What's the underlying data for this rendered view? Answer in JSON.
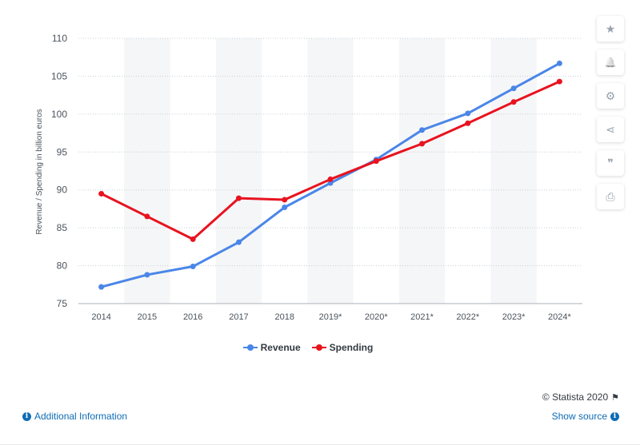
{
  "chart_data": {
    "type": "line",
    "categories": [
      "2014",
      "2015",
      "2016",
      "2017",
      "2018",
      "2019*",
      "2020*",
      "2021*",
      "2022*",
      "2023*",
      "2024*"
    ],
    "series": [
      {
        "name": "Revenue",
        "color": "#4a86e8",
        "values": [
          77.2,
          78.8,
          79.9,
          83.1,
          87.7,
          90.9,
          94.0,
          97.9,
          100.1,
          103.4,
          106.7
        ]
      },
      {
        "name": "Spending",
        "color": "#e8131f",
        "values": [
          89.5,
          86.5,
          83.5,
          88.9,
          88.7,
          91.4,
          93.8,
          96.1,
          98.8,
          101.6,
          104.3
        ]
      }
    ],
    "ylabel": "Revenue / Spending in billion euros",
    "xlabel": "",
    "ylim": [
      75,
      110
    ],
    "yticks": [
      75,
      80,
      85,
      90,
      95,
      100,
      105,
      110
    ],
    "grid": true,
    "legend_position": "bottom"
  },
  "tools": [
    {
      "name": "star-icon",
      "glyph": "★"
    },
    {
      "name": "bell-icon",
      "glyph": "🔔"
    },
    {
      "name": "gear-icon",
      "glyph": "⚙"
    },
    {
      "name": "share-icon",
      "glyph": "⋖"
    },
    {
      "name": "quote-icon",
      "glyph": "❞"
    },
    {
      "name": "print-icon",
      "glyph": "⎙"
    }
  ],
  "footer": {
    "copyright": "© Statista 2020",
    "additional_info": "Additional Information",
    "show_source": "Show source"
  }
}
